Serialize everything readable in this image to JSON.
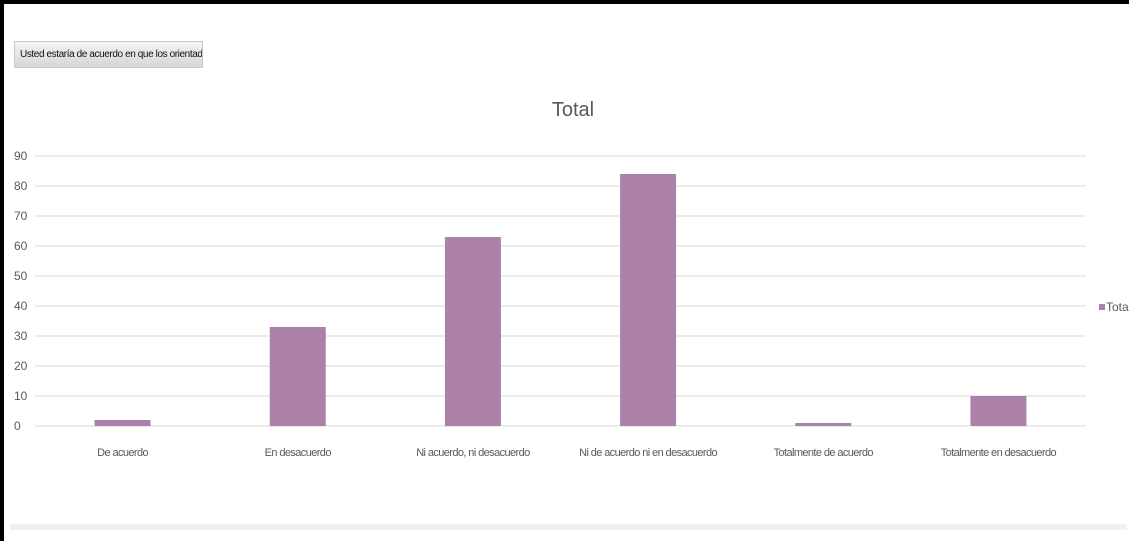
{
  "field_button": {
    "label": "Usted estaría de acuerdo en que los orientadores..."
  },
  "chart_data": {
    "type": "bar",
    "title": "Total",
    "categories": [
      "De acuerdo",
      "En desacuerdo",
      "Ni acuerdo, ni desacuerdo",
      "Ni de acuerdo ni en desacuerdo",
      "Totalmente de acuerdo",
      "Totalmente en desacuerdo"
    ],
    "series": [
      {
        "name": "Total",
        "values": [
          2,
          33,
          63,
          84,
          1,
          10
        ]
      }
    ],
    "ylim": [
      0,
      90
    ],
    "yticks": [
      0,
      10,
      20,
      30,
      40,
      50,
      60,
      70,
      80,
      90
    ],
    "grid": true,
    "legend": "right",
    "colors": {
      "bar": "#ab81a9",
      "grid": "#d9d9d9",
      "text": "#595959"
    }
  }
}
